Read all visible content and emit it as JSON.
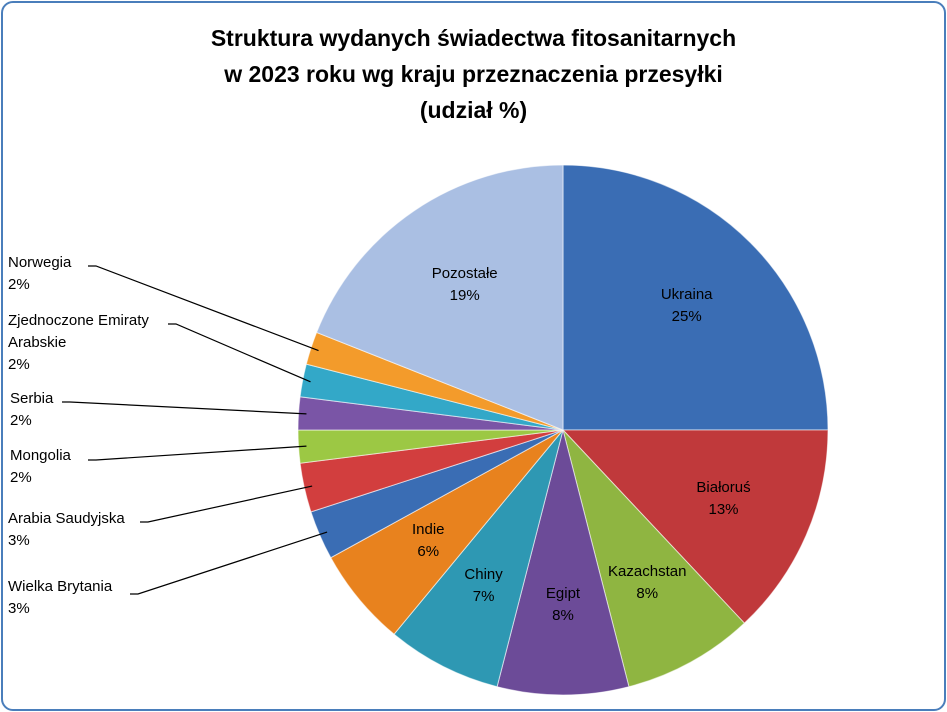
{
  "chart_data": {
    "type": "pie",
    "title": "Struktura wydanych świadectwa fitosanitarnych\nw 2023 roku wg kraju przeznaczenia przesyłki\n(udział %)",
    "categories": [
      "Ukraina",
      "Białoruś",
      "Kazachstan",
      "Egipt",
      "Chiny",
      "Indie",
      "Wielka Brytania",
      "Arabia Saudyjska",
      "Mongolia",
      "Serbia",
      "Zjednoczone Emiraty Arabskie",
      "Norwegia",
      "Pozostałe"
    ],
    "values": [
      25,
      13,
      8,
      8,
      7,
      6,
      3,
      3,
      2,
      2,
      2,
      2,
      19
    ],
    "value_labels": [
      "25%",
      "13%",
      "8%",
      "8%",
      "7%",
      "6%",
      "3%",
      "3%",
      "2%",
      "2%",
      "2%",
      "2%",
      "19%"
    ],
    "colors": [
      "#3a6db4",
      "#c0393b",
      "#8fb541",
      "#6c4b98",
      "#2e98b3",
      "#e8821e",
      "#3a6db4",
      "#d23e3e",
      "#9cc844",
      "#7a55a6",
      "#33a8c8",
      "#f39b2b",
      "#aabfe3"
    ]
  }
}
